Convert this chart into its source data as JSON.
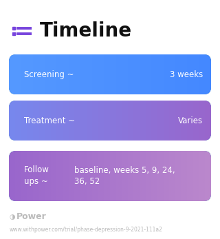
{
  "title": "Timeline",
  "title_fontsize": 20,
  "title_color": "#111111",
  "icon_color": "#7744dd",
  "background_color": "#ffffff",
  "rows": [
    {
      "left_text": "Screening ~",
      "right_text": "3 weeks",
      "color_start": "#5599ff",
      "color_end": "#4488ff",
      "text_color": "#ffffff",
      "multiline": false
    },
    {
      "left_text": "Treatment ~",
      "right_text": "Varies",
      "color_start": "#7788ee",
      "color_end": "#9966cc",
      "text_color": "#ffffff",
      "multiline": false
    },
    {
      "left_text": "Follow\nups ~",
      "right_text": "baseline, weeks 5, 9, 24,\n36, 52",
      "color_start": "#9966cc",
      "color_end": "#bb88cc",
      "text_color": "#ffffff",
      "multiline": true
    }
  ],
  "footer_logo": "Power",
  "footer_url": "www.withpower.com/trial/phase-depression-9-2021-111a2",
  "footer_color": "#bbbbbb",
  "footer_fontsize": 5.5,
  "logo_fontsize": 9
}
